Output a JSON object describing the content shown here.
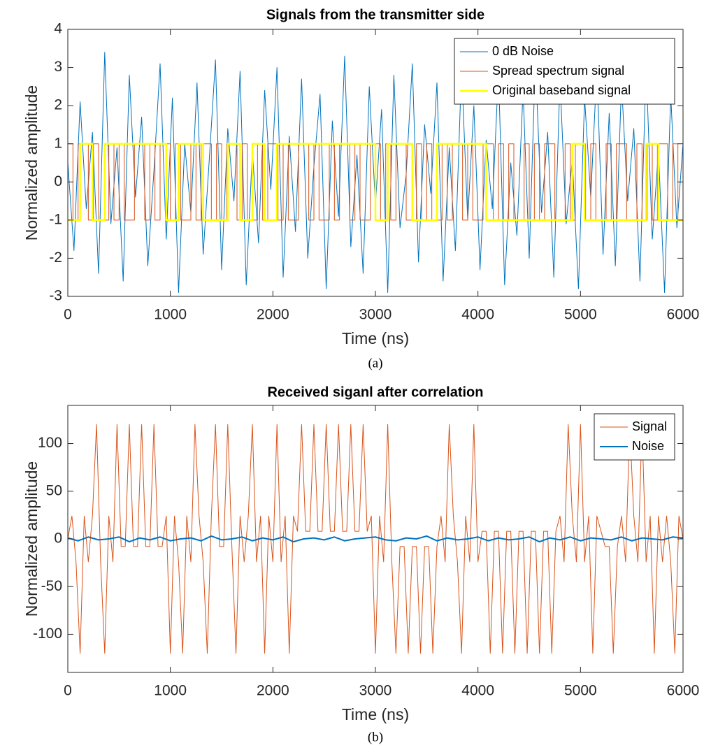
{
  "chart_data": [
    {
      "type": "line",
      "title": "Signals from the transmitter side",
      "xlabel": "Time (ns)",
      "ylabel": "Normalized amplitude",
      "caption": "(a)",
      "xlim": [
        0,
        6000
      ],
      "xticks": [
        0,
        1000,
        2000,
        3000,
        4000,
        5000,
        6000
      ],
      "ylim": [
        -3,
        4
      ],
      "yticks": [
        -3,
        -2,
        -1,
        0,
        1,
        2,
        3,
        4
      ],
      "legend": "upper-right",
      "series": [
        {
          "name": "0 dB Noise",
          "color": "#0072bd",
          "x": [
            0,
            60,
            120,
            180,
            240,
            300,
            360,
            420,
            480,
            540,
            600,
            660,
            720,
            780,
            840,
            900,
            960,
            1020,
            1080,
            1140,
            1200,
            1260,
            1320,
            1380,
            1440,
            1500,
            1560,
            1620,
            1680,
            1740,
            1800,
            1860,
            1920,
            1980,
            2040,
            2100,
            2160,
            2220,
            2280,
            2340,
            2400,
            2460,
            2520,
            2580,
            2640,
            2700,
            2760,
            2820,
            2880,
            2940,
            3000,
            3060,
            3120,
            3180,
            3240,
            3300,
            3360,
            3420,
            3480,
            3540,
            3600,
            3660,
            3720,
            3780,
            3840,
            3900,
            3960,
            4020,
            4080,
            4140,
            4200,
            4260,
            4320,
            4380,
            4440,
            4500,
            4560,
            4620,
            4680,
            4740,
            4800,
            4860,
            4920,
            4980,
            5040,
            5100,
            5160,
            5220,
            5280,
            5340,
            5400,
            5460,
            5520,
            5580,
            5640,
            5700,
            5760,
            5820,
            5880,
            5940,
            6000
          ],
          "values": [
            0.5,
            -1.8,
            2.1,
            -0.7,
            1.3,
            -2.4,
            3.4,
            -1.1,
            0.9,
            -2.6,
            2.8,
            -0.4,
            1.7,
            -2.2,
            0.3,
            3.1,
            -1.5,
            2.2,
            -2.9,
            1.0,
            -0.8,
            2.6,
            -1.9,
            0.6,
            3.2,
            -2.3,
            1.4,
            -0.5,
            2.9,
            -2.7,
            0.8,
            -1.6,
            2.4,
            -0.2,
            3.0,
            -2.5,
            1.2,
            -1.3,
            2.7,
            -2.0,
            0.4,
            2.3,
            -2.8,
            1.6,
            -0.9,
            3.3,
            -1.7,
            0.7,
            -2.4,
            2.5,
            -0.6,
            1.9,
            -2.9,
            2.8,
            -1.2,
            0.2,
            3.1,
            -2.1,
            1.5,
            -0.3,
            2.6,
            -2.6,
            0.9,
            -1.8,
            3.0,
            -1.0,
            2.0,
            -2.3,
            1.1,
            -0.7,
            2.9,
            -2.7,
            0.5,
            -1.4,
            2.4,
            -2.0,
            3.2,
            -0.8,
            1.3,
            -2.5,
            2.7,
            -1.1,
            0.6,
            -2.8,
            2.2,
            -0.4,
            3.0,
            -1.9,
            1.8,
            -2.2,
            2.6,
            -0.5,
            1.4,
            -2.6,
            3.1,
            -1.5,
            0.8,
            -2.9,
            2.3,
            -1.2,
            1.0
          ]
        },
        {
          "name": "Spread spectrum signal",
          "color": "#d95319",
          "drawstyle": "steps-post",
          "x": [
            0,
            50,
            100,
            150,
            200,
            250,
            300,
            350,
            400,
            450,
            500,
            550,
            600,
            650,
            700,
            750,
            800,
            850,
            900,
            950,
            1000,
            1050,
            1100,
            1150,
            1200,
            1250,
            1300,
            1350,
            1400,
            1450,
            1500,
            1550,
            1600,
            1650,
            1700,
            1750,
            1800,
            1850,
            1900,
            1950,
            2000,
            2050,
            2100,
            2150,
            2200,
            2250,
            2300,
            2350,
            2400,
            2450,
            2500,
            2550,
            2600,
            2650,
            2700,
            2750,
            2800,
            2850,
            2900,
            2950,
            3000,
            3050,
            3100,
            3150,
            3200,
            3250,
            3300,
            3350,
            3400,
            3450,
            3500,
            3550,
            3600,
            3650,
            3700,
            3750,
            3800,
            3850,
            3900,
            3950,
            4000,
            4050,
            4100,
            4150,
            4200,
            4250,
            4300,
            4350,
            4400,
            4450,
            4500,
            4550,
            4600,
            4650,
            4700,
            4750,
            4800,
            4850,
            4900,
            4950,
            5000,
            5050,
            5100,
            5150,
            5200,
            5250,
            5300,
            5350,
            5400,
            5450,
            5500,
            5550,
            5600,
            5650,
            5700,
            5750,
            5800,
            5850,
            5900,
            5950,
            6000
          ],
          "values": [
            1,
            -1,
            1,
            1,
            -1,
            1,
            -1,
            -1,
            1,
            -1,
            1,
            -1,
            -1,
            1,
            1,
            -1,
            1,
            -1,
            1,
            1,
            -1,
            1,
            -1,
            -1,
            1,
            -1,
            1,
            1,
            -1,
            1,
            -1,
            1,
            1,
            -1,
            1,
            -1,
            -1,
            1,
            -1,
            1,
            1,
            -1,
            1,
            -1,
            -1,
            1,
            1,
            -1,
            1,
            -1,
            -1,
            1,
            -1,
            1,
            1,
            -1,
            1,
            -1,
            -1,
            1,
            1,
            -1,
            1,
            -1,
            1,
            1,
            -1,
            -1,
            1,
            -1,
            1,
            -1,
            -1,
            1,
            -1,
            1,
            1,
            -1,
            1,
            -1,
            -1,
            1,
            1,
            -1,
            1,
            -1,
            1,
            -1,
            -1,
            1,
            -1,
            1,
            -1,
            1,
            1,
            -1,
            -1,
            1,
            -1,
            1,
            1,
            -1,
            1,
            -1,
            -1,
            1,
            -1,
            1,
            1,
            -1,
            -1,
            1,
            -1,
            1,
            -1,
            1,
            1,
            -1,
            1,
            -1,
            -1
          ]
        },
        {
          "name": "Original baseband signal",
          "color": "#ffff00",
          "drawstyle": "steps-post",
          "linewidth": 2.5,
          "x": [
            0,
            120,
            240,
            360,
            960,
            1080,
            1320,
            1560,
            1680,
            1800,
            1920,
            2040,
            3000,
            3120,
            3360,
            3600,
            4080,
            4920,
            5040,
            5640,
            5760,
            6000
          ],
          "values": [
            -1,
            1,
            -1,
            1,
            -1,
            1,
            -1,
            1,
            -1,
            1,
            -1,
            1,
            -1,
            1,
            -1,
            1,
            -1,
            1,
            -1,
            1,
            -1,
            -1
          ]
        }
      ]
    },
    {
      "type": "line",
      "title": "Received siganl after correlation",
      "xlabel": "Time (ns)",
      "ylabel": "Normalized amplitude",
      "caption": "(b)",
      "xlim": [
        0,
        6000
      ],
      "xticks": [
        0,
        1000,
        2000,
        3000,
        4000,
        5000,
        6000
      ],
      "ylim": [
        -140,
        140
      ],
      "yticks": [
        -100,
        -50,
        0,
        50,
        100
      ],
      "legend": "upper-right",
      "series": [
        {
          "name": "Signal",
          "color": "#d95319",
          "x": [
            0,
            40,
            80,
            120,
            160,
            200,
            240,
            280,
            320,
            360,
            400,
            440,
            480,
            520,
            560,
            600,
            640,
            680,
            720,
            760,
            800,
            840,
            880,
            920,
            960,
            1000,
            1040,
            1080,
            1120,
            1160,
            1200,
            1240,
            1280,
            1320,
            1360,
            1400,
            1440,
            1480,
            1520,
            1560,
            1600,
            1640,
            1680,
            1720,
            1760,
            1800,
            1840,
            1880,
            1920,
            1960,
            2000,
            2040,
            2080,
            2120,
            2160,
            2200,
            2240,
            2280,
            2320,
            2360,
            2400,
            2440,
            2480,
            2520,
            2560,
            2600,
            2640,
            2680,
            2720,
            2760,
            2800,
            2840,
            2880,
            2920,
            2960,
            3000,
            3040,
            3080,
            3120,
            3160,
            3200,
            3240,
            3280,
            3320,
            3360,
            3400,
            3440,
            3480,
            3520,
            3560,
            3600,
            3640,
            3680,
            3720,
            3760,
            3800,
            3840,
            3880,
            3920,
            3960,
            4000,
            4040,
            4080,
            4120,
            4160,
            4200,
            4240,
            4280,
            4320,
            4360,
            4400,
            4440,
            4480,
            4520,
            4560,
            4600,
            4640,
            4680,
            4720,
            4760,
            4800,
            4840,
            4880,
            4920,
            4960,
            5000,
            5040,
            5080,
            5120,
            5160,
            5200,
            5240,
            5280,
            5320,
            5360,
            5400,
            5440,
            5480,
            5520,
            5560,
            5600,
            5640,
            5680,
            5720,
            5760,
            5800,
            5840,
            5880,
            5920,
            5960,
            6000
          ],
          "values": [
            0,
            24,
            -24,
            -120,
            24,
            -24,
            24,
            120,
            -24,
            -120,
            24,
            -24,
            120,
            -8,
            -8,
            120,
            -8,
            -8,
            120,
            -8,
            -8,
            120,
            -8,
            -8,
            24,
            -120,
            24,
            -24,
            -120,
            24,
            -24,
            120,
            24,
            -24,
            -120,
            24,
            120,
            -8,
            -8,
            120,
            -8,
            -120,
            24,
            -24,
            24,
            120,
            -24,
            24,
            -120,
            24,
            -24,
            120,
            -24,
            24,
            -120,
            24,
            8,
            120,
            8,
            8,
            120,
            8,
            8,
            120,
            8,
            8,
            120,
            8,
            8,
            120,
            8,
            8,
            120,
            8,
            24,
            -120,
            24,
            -24,
            120,
            -24,
            -120,
            -8,
            -8,
            -120,
            -8,
            -8,
            -120,
            -8,
            -8,
            -120,
            -8,
            24,
            -24,
            120,
            24,
            -24,
            -120,
            24,
            -24,
            120,
            -24,
            8,
            8,
            -120,
            8,
            8,
            -120,
            8,
            8,
            -120,
            8,
            8,
            -120,
            8,
            8,
            -120,
            8,
            8,
            -120,
            8,
            24,
            -24,
            120,
            24,
            -24,
            120,
            -24,
            24,
            -120,
            24,
            8,
            -8,
            -8,
            -120,
            -8,
            24,
            -24,
            120,
            24,
            -24,
            120,
            -24,
            24,
            -120,
            24,
            -24,
            24,
            -24,
            -120,
            24,
            0
          ]
        },
        {
          "name": "Noise",
          "color": "#0072bd",
          "linewidth": 2,
          "x": [
            0,
            100,
            200,
            300,
            400,
            500,
            600,
            700,
            800,
            900,
            1000,
            1100,
            1200,
            1300,
            1400,
            1500,
            1600,
            1700,
            1800,
            1900,
            2000,
            2100,
            2200,
            2300,
            2400,
            2500,
            2600,
            2700,
            2800,
            2900,
            3000,
            3100,
            3200,
            3300,
            3400,
            3500,
            3600,
            3700,
            3800,
            3900,
            4000,
            4100,
            4200,
            4300,
            4400,
            4500,
            4600,
            4700,
            4800,
            4900,
            5000,
            5100,
            5200,
            5300,
            5400,
            5500,
            5600,
            5700,
            5800,
            5900,
            6000
          ],
          "values": [
            1,
            -2,
            2,
            -1,
            0,
            2,
            -3,
            1,
            -1,
            2,
            -2,
            0,
            1,
            -2,
            3,
            -1,
            0,
            2,
            -2,
            1,
            -1,
            2,
            -3,
            0,
            1,
            -1,
            2,
            -2,
            0,
            1,
            2,
            -1,
            -2,
            1,
            0,
            3,
            -2,
            1,
            -1,
            0,
            2,
            -2,
            1,
            -1,
            0,
            2,
            -3,
            1,
            -1,
            2,
            -2,
            1,
            0,
            -1,
            2,
            -2,
            1,
            0,
            -1,
            2,
            1
          ]
        }
      ]
    }
  ]
}
